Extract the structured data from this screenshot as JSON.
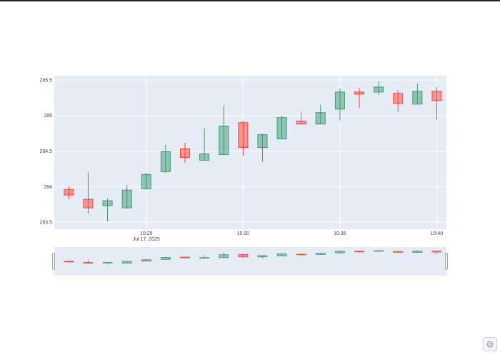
{
  "chart_data": {
    "type": "candlestick",
    "x_ticks": [
      {
        "label": "10:25",
        "sub": "Jul 17, 2025",
        "t": 4
      },
      {
        "label": "10:30",
        "sub": "",
        "t": 9
      },
      {
        "label": "10:35",
        "sub": "",
        "t": 14
      },
      {
        "label": "10:40",
        "sub": "",
        "t": 19
      }
    ],
    "y_ticks": [
      283.5,
      284,
      284.5,
      285,
      285.5
    ],
    "y_tick_labels": [
      "283.5",
      "284",
      "284.5",
      "285",
      "285.5"
    ],
    "ylim": [
      283.4,
      285.56
    ],
    "xlim": [
      -0.75,
      19.5
    ],
    "increasing_color": "#3d9970",
    "decreasing_color": "#ff4136",
    "candles": [
      {
        "t": 0,
        "open": 283.96,
        "high": 284.01,
        "low": 283.82,
        "close": 283.88
      },
      {
        "t": 1,
        "open": 283.82,
        "high": 284.2,
        "low": 283.62,
        "close": 283.7
      },
      {
        "t": 2,
        "open": 283.73,
        "high": 283.83,
        "low": 283.51,
        "close": 283.8
      },
      {
        "t": 3,
        "open": 283.7,
        "high": 284.02,
        "low": 283.69,
        "close": 283.95
      },
      {
        "t": 4,
        "open": 283.97,
        "high": 284.19,
        "low": 283.96,
        "close": 284.17
      },
      {
        "t": 5,
        "open": 284.21,
        "high": 284.59,
        "low": 284.19,
        "close": 284.49
      },
      {
        "t": 6,
        "open": 284.53,
        "high": 284.62,
        "low": 284.33,
        "close": 284.41
      },
      {
        "t": 7,
        "open": 284.37,
        "high": 284.82,
        "low": 284.37,
        "close": 284.46
      },
      {
        "t": 8,
        "open": 284.45,
        "high": 285.14,
        "low": 284.45,
        "close": 284.85
      },
      {
        "t": 9,
        "open": 284.9,
        "high": 284.92,
        "low": 284.43,
        "close": 284.55
      },
      {
        "t": 10,
        "open": 284.55,
        "high": 284.74,
        "low": 284.35,
        "close": 284.73
      },
      {
        "t": 11,
        "open": 284.67,
        "high": 285.0,
        "low": 284.67,
        "close": 284.97
      },
      {
        "t": 12,
        "open": 284.92,
        "high": 285.04,
        "low": 284.87,
        "close": 284.88
      },
      {
        "t": 13,
        "open": 284.88,
        "high": 285.15,
        "low": 284.88,
        "close": 285.04
      },
      {
        "t": 14,
        "open": 285.09,
        "high": 285.38,
        "low": 284.93,
        "close": 285.33
      },
      {
        "t": 15,
        "open": 285.33,
        "high": 285.39,
        "low": 285.1,
        "close": 285.3
      },
      {
        "t": 16,
        "open": 285.33,
        "high": 285.48,
        "low": 285.29,
        "close": 285.4
      },
      {
        "t": 17,
        "open": 285.31,
        "high": 285.36,
        "low": 285.05,
        "close": 285.17
      },
      {
        "t": 18,
        "open": 285.16,
        "high": 285.45,
        "low": 285.16,
        "close": 285.34
      },
      {
        "t": 19,
        "open": 285.34,
        "high": 285.4,
        "low": 284.94,
        "close": 285.21
      }
    ],
    "grid": true,
    "rangeslider": true
  },
  "ui": {
    "corner_icon": "plotly-logo-icon",
    "corner_glyph": "◎"
  }
}
